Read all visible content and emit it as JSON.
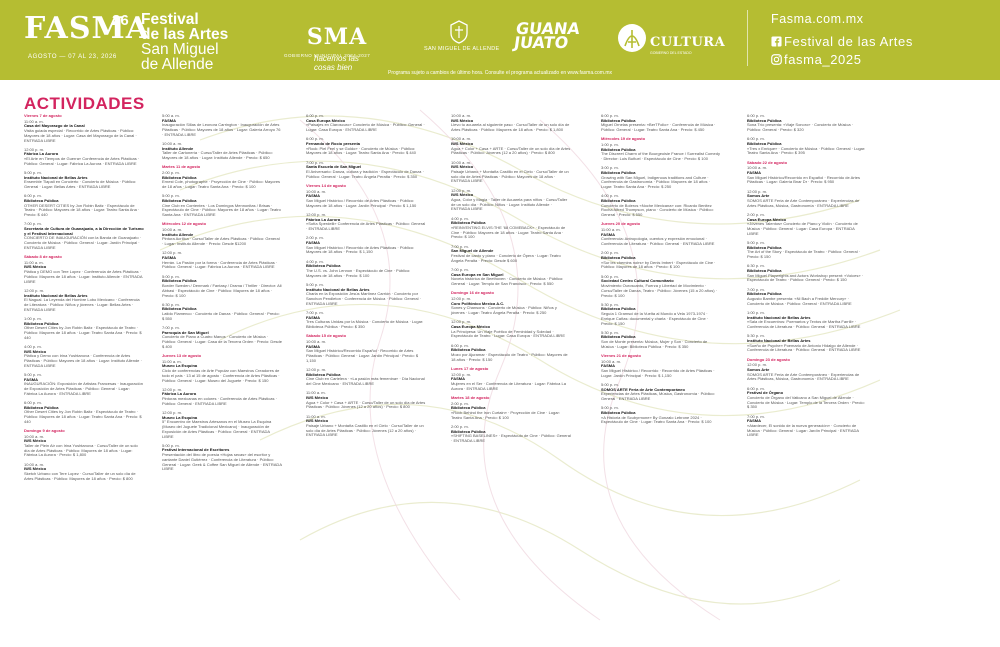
{
  "header": {
    "logo": {
      "text": "FASMA",
      "superscript": "26",
      "dates": "AGOSTO — 07 AL 23, 2026"
    },
    "festival_title": [
      "Festival",
      "de las Artes",
      "San Miguel",
      "de Allende"
    ],
    "sponsors": {
      "sma_mark": "SMA",
      "sma_slogan": "hacemos las cosas bien",
      "sma_sub": "GOBIERNO MUNICIPAL 2024-2027",
      "crest_label": "SAN MIGUEL DE ALLENDE",
      "guanajuato": [
        "GUANA",
        "JUATO"
      ],
      "cultura": "CULTURA",
      "cultura_sub": "GOBIERNO DEL ESTADO"
    },
    "contact": {
      "website": "Fasma.com.mx",
      "facebook": "Festival de las Artes",
      "instagram": "fasma_2025"
    },
    "notice": "Programa sujeto a cambios de último hora. Consulte el programa actualizado en www.fasma.com.mx",
    "colors": {
      "header_bg": "#b5bd32",
      "accent": "#d3245f"
    }
  },
  "activities": {
    "title": "ACTIVIDADES",
    "columns": [
      [
        {
          "d": "Viernes 7 de agosto"
        },
        {
          "t": "11:00 a. m.",
          "h": "Casa del Mayorazgo de la Canal",
          "b": "Visita guiada especial · Recorrido de Artes Plásticas · Público: Mayores de 18 años · Lugar: Casa del Mayorazgo de la Canal · ENTRADA LIBRE"
        },
        {
          "t": "12:00 p. m.",
          "h": "Fábrica La Aurora",
          "b": "«El Arte en Tiempos de Guerra» Conferencia de Artes Plásticas · Público: General · Lugar: Fábrica La Aurora · ENTRADA LIBRE"
        },
        {
          "t": "5:00 p. m.",
          "h": "Instituto Nacional de Bellas Artes",
          "b": "Ensemble Tlapali en Concierto · Concierto de Música · Público: General · Lugar: Bellas Artes · ENTRADA LIBRE"
        },
        {
          "t": "6:00 p. m.",
          "h": "Biblioteca Pública",
          "b": "OTHER DESERT CITIES by Jon Robin Baitz · Espectáculo de Teatro · Público: Mayores de 18 años · Lugar: Teatro Santa Ana · Precio: $ 440"
        },
        {
          "t": "7:00 p. m.",
          "h": "Secretaría de Cultura de Guanajuato, a la Dirección de Turismo y el Festival Internacional",
          "b": "CONCIERTO DE INAUGURACIÓN con la Banda de Guanajuato · Concierto de Música · Público: General · Lugar: Jardín Principal · ENTRADA LIBRE"
        },
        {
          "d": "Sábado 8 de agosto"
        },
        {
          "t": "11:00 a. m.",
          "h": "IWS México",
          "b": "Plática y DEMO con Tere Lopez · Conferencia de Artes Plásticas · Público: Mayores de 18 años · Lugar: Instituto Allende · ENTRADA LIBRE"
        },
        {
          "t": "12:00 p. m.",
          "h": "Instituto Nacional de Bellas Artes",
          "b": "El Nagual. La Leyenda del Hombre Lobo Mexicano · Conferencia de Literatura · Público: Niños y jóvenes · Lugar: Bellas Artes · ENTRADA LIBRE"
        },
        {
          "t": "1:00 p. m.",
          "h": "Biblioteca Pública",
          "b": "Other Desert Cities by Jon Robin Baitz · Espectáculo de Teatro · Público: Mayores de 18 años · Lugar: Teatro Santa Ana · Precio: $ 440"
        },
        {
          "t": "4:00 p. m.",
          "h": "IWS México",
          "b": "Plática y Demo con Irina Yushtanova · Conferencia de Artes Plásticas · Público: Mayores de 18 años · Lugar: Instituto Allende · ENTRADA LIBRE"
        },
        {
          "t": "5:00 p. m.",
          "h": "FASMA",
          "b": "INAUGURACIÓN: Exposición de Artistas Francesas · Inauguración de Exposición de Artes Plásticas · Público: General · Lugar: Fábrica La Aurora · ENTRADA LIBRE"
        },
        {
          "t": "6:00 p. m.",
          "h": "Biblioteca Pública",
          "b": "Other Desert Cities by Jon Robin Baitz · Espectáculo de Teatro · Público: Mayores de 18 años · Lugar: Teatro Santa Ana · Precio: $ 440"
        },
        {
          "d": "Domingo 9 de agosto"
        },
        {
          "t": "10:00 a. m.",
          "h": "IWS México",
          "b": "Taller de Plein Air con Irina Yushtanova · Curso/Taller de un solo día de Artes Plásticas · Público: Mayores de 18 años · Lugar: Fábrica La Aurora · Precio: $ 1,800"
        },
        {
          "t": "10:00 a. m.",
          "h": "IWS México",
          "b": "Sketch Urbano con Tere Lopez · Curso/Taller de un solo día de Artes Plásticas · Público: Mayores de 18 años · Precio: $ 800"
        }
      ],
      [
        {
          "t": "5:00 a. m.",
          "h": "FASMA",
          "b": "Inauguración Sillas de Leonora Carrington · Inauguración de Artes Plásticas · Público: Mayores de 18 años · Lugar: Galería Arroyo 76 · ENTRADA LIBRE"
        },
        {
          "t": "10:00 a. m.",
          "h": "Instituto Allende",
          "b": "Taller de Cartonería · Curso/Taller de Artes Plásticas · Público: Mayores de 18 años · Lugar: Instituto Allende · Precio: $ 650"
        },
        {
          "d": "Martes 11 de agosto"
        },
        {
          "t": "2:00 p. m.",
          "h": "Biblioteca Pública",
          "b": "Ernest Cole, photographe · Proyección de Cine · Público: Mayores de 18 años · Lugar: Teatro Santa Ana · Precio: $ 100"
        },
        {
          "t": "5:00 p. m.",
          "h": "Biblioteca Pública",
          "b": "Cine Club en Corrientes · Los Domingos Mennonitas / Brisas · Espectáculo de Cine · Público: Mayores de 18 años · Lugar: Teatro Santa Ana · ENTRADA LIBRE"
        },
        {
          "d": "Miércoles 12 de agosto"
        },
        {
          "t": "10:00 a. m.",
          "h": "Instituto Allende",
          "b": "Pintura Acrílica · Curso/Taller de Artes Plásticas · Público: General · Lugar: Instituto Allende · Precio: Desde $1200"
        },
        {
          "t": "12:00 p. m.",
          "h": "FASMA",
          "b": "Herrán. La Pasión por la forma · Conferencia de Artes Plásticas · Público: General · Lugar: Fábrica La Aurora · ENTRADA LIBRE"
        },
        {
          "t": "5:00 p. m.",
          "h": "Biblioteca Pública",
          "b": "Border Sweden / Denmark / Fantasy / Drama / Thriller · Director: Ali Abbasi · Espectáculo de Cine · Público: Mayores de 18 años · Precio: $ 100"
        },
        {
          "t": "6:30 p. m.",
          "h": "Biblioteca Pública",
          "b": "Latido Flamenco · Concierto de Danza · Público: General · Precio: $ 550"
        },
        {
          "t": "7:00 p. m.",
          "h": "Parroquia de San Miguel",
          "b": "Concierto de Piano a Cuatro Manos · Concierto de Música · Público: General · Lugar: Casa de la Tercera Orden · Precio: Desde $ 400"
        },
        {
          "d": "Jueves 13 de agosto"
        },
        {
          "t": "11:00 a. m.",
          "h": "Museo La Esquina",
          "b": "Ciclo de conferencias de Arte Popular con Maestros Creadores de todo el país · 13 al 15 de agosto · Conferencia de Artes Plásticas · Público: General · Lugar: Museo del Juguete · Precio: $ 150"
        },
        {
          "t": "12:00 p. m.",
          "h": "Fábrica La Aurora",
          "b": "Pintoras mexicanas en colores · Conferencia de Artes Plásticas · Público: General · ENTRADA LIBRE"
        },
        {
          "t": "12:00 p. m.",
          "h": "Museo La Esquina",
          "b": "5° Encuentro de Maestros Artesanos en el Museo La Esquina (Museo del Juguete Tradicional Mexicano) · Inauguración de Exposición de Artes Plásticas · Público: General · ENTRADA LIBRE"
        },
        {
          "t": "5:00 p. m.",
          "h": "Festival Internacional de Escritores",
          "b": "Presentación del libro de poesía «Hojas secas» del escritor y cantante Daniel Gutiérrez · Conferencia de Literatura · Público: General · Lugar: Geek & Coffee San Miguel de Allende · ENTRADA LIBRE"
        }
      ],
      [
        {
          "t": "6:00 p. m.",
          "h": "Casa Europa México",
          "b": "«Paisajes en Claroscuro» Concierto de Música · Público: General · Lugar: Casa Europa · ENTRADA LIBRE"
        },
        {
          "t": "6:00 p. m.",
          "h": "Fernando de Rocío presenta",
          "b": "«Rock: Piel Feel y se Goldo» · Concierto de Música · Público: Mayores de 18 años · Lugar: Teatro Santa Ana · Precio: $ 440"
        },
        {
          "t": "7:00 p. m.",
          "h": "Santa Escuela de San Miguel",
          "b": "El Aniversario: Danza, cultura y tradición · Espectáculo de Danza · Público: General · Lugar: Teatro Ángela Peralta · Precio: $ 350"
        },
        {
          "d": "Viernes 14 de agosto"
        },
        {
          "t": "10:00 a. m.",
          "h": "FASMA",
          "b": "San Miguel Histórico / Recorrido de Artes Plásticas · Público: Mayores de 18 años · Lugar: Jardín Principal · Precio: $ 1,150"
        },
        {
          "t": "12:00 p. m.",
          "h": "Fábrica La Aurora",
          "b": "«Sofía Sperdelli» Conferencia de Artes Plásticas · Público: General · ENTRADA LIBRE"
        },
        {
          "t": "2:00 p. m.",
          "h": "FASMA",
          "b": "San Miguel Histórico / Recorrido de Artes Plásticas · Público: Mayores de 18 años · Precio: $ 1,150"
        },
        {
          "t": "4:00 p. m.",
          "h": "Biblioteca Pública",
          "b": "The U.S. vs. John Lennon · Espectáculo de Cine · Público: Mayores de 18 años · Precio: $ 100"
        },
        {
          "t": "5:00 p. m.",
          "h": "Instituto Nacional de Bellas Artes",
          "b": "Charla en la Exposición Jesús Martínez Carrión · Concierto por Sanchon Pendleton · Conferencia de Música · Público: General · ENTRADA LIBRE"
        },
        {
          "t": "7:00 p. m.",
          "h": "FASMA",
          "b": "Tres Culturas Unidas por la Música · Concierto de Música · Lugar: Biblioteca Pública · Precio: $ 350"
        },
        {
          "d": "Sábado 15 de agosto"
        },
        {
          "t": "10:00 a. m.",
          "h": "FASMA",
          "b": "San Miguel Histórico/Recorrido Español · Recorrido de Artes Plásticas · Público: General · Lugar: Jardín Principal · Precio: $ 1,150"
        },
        {
          "t": "12:00 p. m.",
          "h": "Biblioteca Pública",
          "b": "Cine Club en Cartelera · «La pasión más femenina» · Día Nacional del Cine Mexicano · ENTRADA LIBRE"
        },
        {
          "t": "11:00 a. m.",
          "h": "IWS México",
          "b": "Agua + Color + Casa + ARTE · Curso/Taller de un solo día de Artes Plásticas · Público: Jóvenes (12 a 20 años) · Precio: $ 800"
        },
        {
          "t": "11:00 a. m.",
          "h": "IWS México",
          "b": "Paisaje Urbano + Montaña Castillo en el Cielo · Curso/Taller de un solo día de Artes Plásticas · Público: Jóvenes (12 a 20 años) · ENTRADA LIBRE"
        }
      ],
      [
        {
          "t": "10:00 a. m.",
          "h": "IWS México",
          "b": "Llevo tu acuarela al siguiente paso · Curso/Taller de un solo día de Artes Plásticas · Público: Mayores de 18 años · Precio: $ 1,800"
        },
        {
          "t": "10:00 a. m.",
          "h": "IWS México",
          "b": "Agua + Color + Casa + ARTE · Curso/Taller de un solo día de Artes Plásticas · Público: Jóvenes (12 a 20 años) · Precio: $ 800"
        },
        {
          "t": "10:00 a. m.",
          "h": "IWS México",
          "b": "Paisaje Urbano + Montaña Castillo en el Cielo · Curso/Taller de un solo día de Artes Plásticas · Público: Mayores de 18 años · ENTRADA LIBRE"
        },
        {
          "t": "12:00 p. m.",
          "h": "IWS México",
          "b": "Agua, Color y Magia · Taller de Acuarela para niños · Curso/Taller de un solo día · Público: Niños · Lugar: Instituto Allende · ENTRADA LIBRE"
        },
        {
          "t": "4:00 p. m.",
          "h": "Biblioteca Pública",
          "b": "«REINVENTING ELVIS:THE '68 COMEBACK» · Espectáculo de Cine · Público: Mayores de 18 años · Lugar: Teatro Santa Ana · Precio: $ 100"
        },
        {
          "t": "7:00 p. m.",
          "h": "San Miguel de Allende",
          "b": "Festival de canto y piano · Concierto de Ópera · Lugar: Teatro Ángela Peralta · Precio: Desde $ 600"
        },
        {
          "t": "7:00 p. m.",
          "h": "Casa Europa en San Miguel",
          "b": "Noveta histórica de Beethoven · Concierto de Música · Público: General · Lugar: Templo de San Francisco · Precio: $ 550"
        },
        {
          "d": "Domingo 16 de agosto"
        },
        {
          "t": "12:00 p. m.",
          "h": "Coro Polifónico Mexica A.C.",
          "b": "Sones y Chansons · Concierto de Música · Público: Niños y jóvenes · Lugar: Teatro Ángela Peralta · Precio: $ 250"
        },
        {
          "t": "12:00 p. m.",
          "h": "Casa Europa México",
          "b": "La Principesa: Un Viaje Poético de Feminidad y Soledad · Espectáculo de Teatro · Lugar: Casa Europa · ENTRADA LIBRE"
        },
        {
          "t": "6:00 p. m.",
          "h": "Biblioteca Pública",
          "b": "Mozo por Ajuramar · Espectáculo de Teatro · Público: Mayores de 18 años · Precio: $ 150"
        },
        {
          "d": "Lunes 17 de agosto"
        },
        {
          "t": "12:00 p. m.",
          "h": "FASMA",
          "b": "Mujeres en el Ser · Conferencia de Literatura · Lugar: Fábrica La Aurora · ENTRADA LIBRE"
        },
        {
          "d": "Martes 18 de agosto"
        },
        {
          "t": "2:00 p. m.",
          "h": "Biblioteca Pública",
          "b": "«Rock Behind the Iron Curtain» · Proyección de Cine · Lugar: Teatro Santa Ana · Precio: $ 100"
        },
        {
          "t": "2:00 p. m.",
          "h": "Biblioteca Pública",
          "b": "«SHIFTING BASELINES» · Espectáculo de Cine · Público: General · ENTRADA LIBRE"
        }
      ],
      [
        {
          "t": "6:00 p. m.",
          "h": "Biblioteca Pública",
          "b": "Miguel Ornelas presenta: «BerTFolio» · Conferencia de Música · Público: General · Lugar: Teatro Santa Ana · Precio: $ 450"
        },
        {
          "d": "Miércoles 19 de agosto"
        },
        {
          "t": "1:00 p. m.",
          "h": "Biblioteca Pública",
          "b": "The Discreet Charm of the Bourgeoisie France / Surrealist Comedy · Director: Luis Buñuel · Espectáculo de Cine · Precio: $ 100"
        },
        {
          "t": "3:00 p. m.",
          "h": "Biblioteca Pública",
          "b": "Growing with San Miguel, Indigenous traditions and Culture · Conferencia de Gastronomía · Público: Mayores de 18 años · Lugar: Teatro Santa Ana · Precio: $ 250"
        },
        {
          "t": "4:00 p. m.",
          "h": "Biblioteca Pública",
          "b": "Concierto de Boleros «Noche Mexicana» con: Ricardo Benitez Rocha Alfred Thompson, piano · Concierto de Música · Público: General · Precio: $ 550"
        },
        {
          "d": "Jueves 20 de agosto"
        },
        {
          "t": "11:00 a. m.",
          "h": "FASMA",
          "b": "Conferencia: Antropología, cuentos y expresión emocional · Conferencia de Literatura · Público: General · ENTRADA LIBRE"
        },
        {
          "t": "2:00 p. m.",
          "h": "Biblioteca Pública",
          "b": "«Sur les chemins noirs» by Denis Imbert · Espectáculo de Cine · Público: Mayores de 18 años · Precio: $ 100"
        },
        {
          "t": "5:00 p. m.",
          "h": "Sociedad Centro Cultural Comunitario",
          "b": "Movimiento Ouroscanto, Fuerza y Libertad de Movimiento · Curso/Taller de Danza, Teatro · Público: Jóvenes (15 a 20 años) · Precio: $ 100"
        },
        {
          "t": "5:30 p. m.",
          "h": "Biblioteca Pública",
          "b": "Seguía 1 Gramsci de la Vuelta al Mundo a Vela 1973-1974 · Enrique Cañas: documental y charla · Espectáculo de Cine · Precio: $ 150"
        },
        {
          "t": "5:30 p. m.",
          "h": "Biblioteca Pública",
          "b": "Son de Monte presenta: Música, Mujer y Son · Concierto de Música · Lugar: Biblioteca Pública · Precio: $ 350"
        },
        {
          "d": "Viernes 21 de agosto"
        },
        {
          "t": "10:00 a. m.",
          "h": "FASMA",
          "b": "San Miguel Histórico / Recorrido · Recorrido de Artes Plásticas · Lugar: Jardín Principal · Precio: $ 1,150"
        },
        {
          "t": "5:00 p. m.",
          "h": "SOMOS ARTE Feria de Arte Contemporáneo",
          "b": "Experiencias de Artes Plásticas, Música, Gastronomía · Público: General · ENTRADA LIBRE"
        },
        {
          "t": "5:00 p. m.",
          "h": "Biblioteca Pública",
          "b": "«A Historia de Scubyrmone» By Gonzalo Lebrone 2024 · Espectáculo de Cine · Lugar: Teatro Santa Ana · Precio: $ 100"
        }
      ],
      [
        {
          "t": "6:00 p. m.",
          "h": "Biblioteca Pública",
          "b": "Sona Trío presenta: «Viaje Sonoro» · Concierto de Música · Público: General · Precio: $ 320"
        },
        {
          "t": "6:00 p. m.",
          "h": "Biblioteca Pública",
          "b": "«Tres x Enrique» · Concierto de Música · Público: General · Lugar: Teatro Santa Ana · Precio: $ 395"
        },
        {
          "d": "Sábado 22 de agosto"
        },
        {
          "t": "10:00 a. m.",
          "h": "FASMA",
          "b": "San Miguel Histórico/Recorrido en Español · Recorrido de Artes Plásticas · Lugar: Galería Bnar Dr · Precio: $ 950"
        },
        {
          "t": "12:00 p. m.",
          "h": "Somos Arte",
          "b": "SOMOS ARTE Feria de Arte Contemporáneo · Experiencias de Artes Plásticas, Música, Gastronomía · ENTRADA LIBRE"
        },
        {
          "t": "2:00 p. m.",
          "h": "Casa Europa México",
          "b": "«Jóvenes Talentos» Concierto de Piano y Violín · Concierto de Música · Público: General · Lugar: Casa Europa · ENTRADA LIBRE"
        },
        {
          "t": "5:00 p. m.",
          "h": "Biblioteca Pública",
          "b": "The Art of the Story · Espectáculo de Teatro · Público: General · Precio: $ 150"
        },
        {
          "t": "6:30 p. m.",
          "h": "Biblioteca Pública",
          "b": "San Miguel Playwrights and Actors Workshop present: «Voices» · Espectáculo de Teatro · Público: General · Precio: $ 150"
        },
        {
          "t": "7:00 p. m.",
          "h": "Biblioteca Pública",
          "b": "Augusto Bambe presenta: «Ni Bach a Freddie Mercury» · Concierto de Música · Público: General · ENTRADA LIBRE"
        },
        {
          "t": "1:00 p. m.",
          "h": "Instituto Nacional de Bellas Artes",
          "b": "«Sala de Encuentros: Poemarios y Textos de Martha Farrill» · Conferencia de Literatura · Público: General · ENTRADA LIBRE"
        },
        {
          "t": "5:30 p. m.",
          "h": "Instituto Nacional de Bellas Artes",
          "b": "«Sueño de Psyche» Poemario de Antonio Hidalgo de Allende · Conferencia de Literatura · Público: General · ENTRADA LIBRE"
        },
        {
          "d": "Domingo 23 de agosto"
        },
        {
          "t": "12:00 p. m.",
          "h": "Somos Arte",
          "b": "SOMOS ARTE Feria de Arte Contemporáneo · Experiencias de Artes Plásticas, Música, Gastronomía · ENTRADA LIBRE"
        },
        {
          "t": "6:00 p. m.",
          "h": "Festival de Órgano",
          "b": "Concierto de Órgano del Vaticano a San Miguel de Allende · Concierto de Música · Lugar: Templo de la Tercera Orden · Precio: $ 350"
        },
        {
          "t": "7:00 p. m.",
          "h": "FASMA",
          "b": "«Atardecer, El sonido de la nueva generación» · Concierto de Música · Público: General · Lugar: Jardín Principal · ENTRADA LIBRE"
        }
      ]
    ]
  }
}
